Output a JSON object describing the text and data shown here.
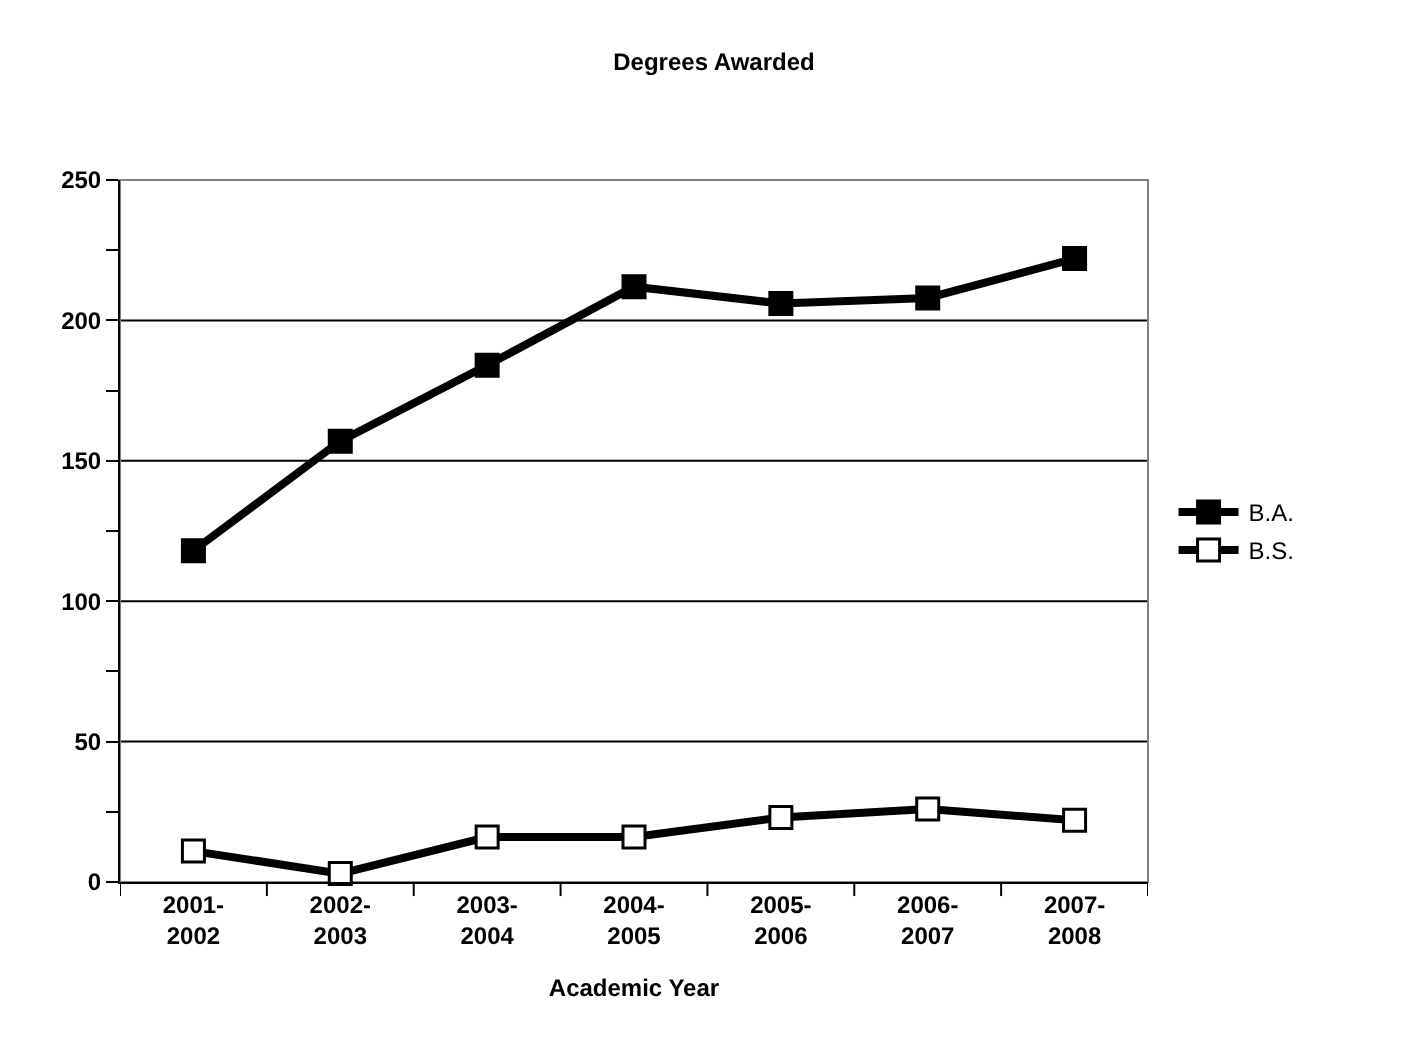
{
  "chart_data": {
    "type": "line",
    "title": "Degrees Awarded",
    "xlabel": "Academic Year",
    "categories": [
      "2001-\n2002",
      "2002-\n2003",
      "2003-\n2004",
      "2004-\n2005",
      "2005-\n2006",
      "2006-\n2007",
      "2007-\n2008"
    ],
    "series": [
      {
        "name": "B.A.",
        "color": "#000000",
        "values": [
          118,
          157,
          184,
          212,
          206,
          208,
          222
        ]
      },
      {
        "name": "B.S.",
        "color": "#000000",
        "values": [
          11,
          3,
          16,
          16,
          23,
          26,
          22
        ]
      }
    ],
    "ylim": [
      0,
      250
    ],
    "yticks": [
      0,
      {
        "value": 25,
        "label": null
      },
      50,
      {
        "value": 75,
        "label": null
      },
      100,
      {
        "value": 125,
        "label": null
      },
      150,
      {
        "value": 175,
        "label": null
      },
      200,
      {
        "value": 225,
        "label": null
      },
      250
    ],
    "grid": "y",
    "legend": "right",
    "marker": "square",
    "line_style": "solid"
  }
}
